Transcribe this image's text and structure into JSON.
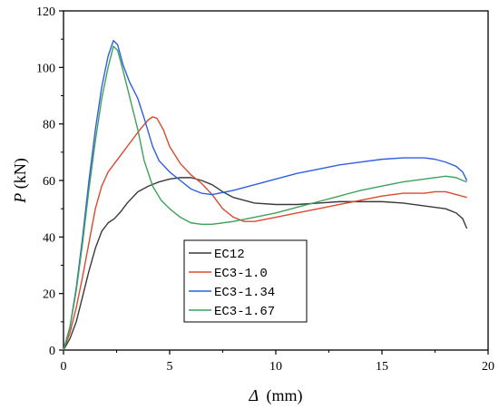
{
  "chart_data": {
    "type": "line",
    "title": "",
    "xlabel_symbol": "Δ",
    "xlabel_unit": "(mm)",
    "ylabel_symbol": "P",
    "ylabel_unit": "(kN)",
    "xlim": [
      0,
      20
    ],
    "ylim": [
      0,
      120
    ],
    "xticks": [
      0,
      5,
      10,
      15,
      20
    ],
    "yticks": [
      0,
      20,
      40,
      60,
      80,
      100,
      120
    ],
    "grid": false,
    "legend_placement": "lower-center",
    "series": [
      {
        "name": "EC12",
        "color": "#3a3a3a",
        "points": [
          [
            0,
            0
          ],
          [
            0.3,
            4
          ],
          [
            0.6,
            10
          ],
          [
            0.9,
            19
          ],
          [
            1.2,
            28
          ],
          [
            1.5,
            36
          ],
          [
            1.8,
            42
          ],
          [
            2.1,
            45
          ],
          [
            2.4,
            46.5
          ],
          [
            2.7,
            49
          ],
          [
            3.0,
            52
          ],
          [
            3.5,
            56
          ],
          [
            4.0,
            58
          ],
          [
            4.5,
            59.5
          ],
          [
            5.0,
            60.5
          ],
          [
            5.5,
            61
          ],
          [
            6.0,
            61
          ],
          [
            6.5,
            60
          ],
          [
            7.0,
            58.5
          ],
          [
            7.5,
            56
          ],
          [
            8.0,
            54
          ],
          [
            9.0,
            52
          ],
          [
            10.0,
            51.5
          ],
          [
            11.0,
            51.5
          ],
          [
            12.0,
            52
          ],
          [
            13.0,
            52.5
          ],
          [
            14.0,
            52.5
          ],
          [
            15.0,
            52.5
          ],
          [
            16.0,
            52
          ],
          [
            17.0,
            51
          ],
          [
            18.0,
            50
          ],
          [
            18.5,
            48.5
          ],
          [
            18.8,
            46.5
          ],
          [
            19.0,
            43
          ]
        ]
      },
      {
        "name": "EC3-1.0",
        "color": "#d94a2e",
        "points": [
          [
            0,
            0
          ],
          [
            0.3,
            6
          ],
          [
            0.6,
            15
          ],
          [
            0.9,
            26
          ],
          [
            1.2,
            38
          ],
          [
            1.5,
            50
          ],
          [
            1.8,
            58
          ],
          [
            2.1,
            63
          ],
          [
            2.4,
            66
          ],
          [
            2.8,
            70
          ],
          [
            3.2,
            74
          ],
          [
            3.6,
            78
          ],
          [
            4.0,
            81.5
          ],
          [
            4.2,
            82.5
          ],
          [
            4.4,
            82
          ],
          [
            4.7,
            78
          ],
          [
            5.0,
            72
          ],
          [
            5.5,
            66
          ],
          [
            6.0,
            62
          ],
          [
            6.5,
            59
          ],
          [
            7.0,
            55
          ],
          [
            7.5,
            50
          ],
          [
            8.0,
            47
          ],
          [
            8.5,
            45.5
          ],
          [
            9.0,
            45.5
          ],
          [
            10.0,
            47
          ],
          [
            11.0,
            48.5
          ],
          [
            12.0,
            50
          ],
          [
            13.0,
            51.5
          ],
          [
            14.0,
            53
          ],
          [
            15.0,
            54.5
          ],
          [
            16.0,
            55.5
          ],
          [
            17.0,
            55.5
          ],
          [
            17.5,
            56
          ],
          [
            18.0,
            56
          ],
          [
            18.5,
            55
          ],
          [
            19.0,
            54
          ]
        ]
      },
      {
        "name": "EC3-1.34",
        "color": "#2f5fe0",
        "points": [
          [
            0,
            0
          ],
          [
            0.3,
            8
          ],
          [
            0.6,
            22
          ],
          [
            0.9,
            40
          ],
          [
            1.2,
            60
          ],
          [
            1.5,
            78
          ],
          [
            1.8,
            93
          ],
          [
            2.1,
            104
          ],
          [
            2.35,
            109.5
          ],
          [
            2.55,
            108
          ],
          [
            2.8,
            101
          ],
          [
            3.1,
            95
          ],
          [
            3.5,
            89
          ],
          [
            3.8,
            82
          ],
          [
            4.2,
            72
          ],
          [
            4.5,
            67
          ],
          [
            5.0,
            63
          ],
          [
            5.5,
            60
          ],
          [
            6.0,
            57
          ],
          [
            6.5,
            55.5
          ],
          [
            7.0,
            55
          ],
          [
            8.0,
            56.5
          ],
          [
            9.0,
            58.5
          ],
          [
            10.0,
            60.5
          ],
          [
            11.0,
            62.5
          ],
          [
            12.0,
            64
          ],
          [
            13.0,
            65.5
          ],
          [
            14.0,
            66.5
          ],
          [
            15.0,
            67.5
          ],
          [
            16.0,
            68
          ],
          [
            17.0,
            68
          ],
          [
            17.5,
            67.5
          ],
          [
            18.0,
            66.5
          ],
          [
            18.5,
            65
          ],
          [
            18.8,
            63
          ],
          [
            19.0,
            60
          ]
        ]
      },
      {
        "name": "EC3-1.67",
        "color": "#3fa05c",
        "points": [
          [
            0,
            0
          ],
          [
            0.3,
            8
          ],
          [
            0.6,
            21
          ],
          [
            0.9,
            38
          ],
          [
            1.2,
            57
          ],
          [
            1.5,
            74
          ],
          [
            1.8,
            89
          ],
          [
            2.1,
            100
          ],
          [
            2.35,
            107.5
          ],
          [
            2.55,
            106
          ],
          [
            2.8,
            99
          ],
          [
            3.1,
            90
          ],
          [
            3.5,
            78
          ],
          [
            3.8,
            67
          ],
          [
            4.2,
            58
          ],
          [
            4.6,
            53
          ],
          [
            5.0,
            50
          ],
          [
            5.5,
            47
          ],
          [
            6.0,
            45
          ],
          [
            6.5,
            44.5
          ],
          [
            7.0,
            44.5
          ],
          [
            8.0,
            45.5
          ],
          [
            9.0,
            47
          ],
          [
            10.0,
            48.5
          ],
          [
            11.0,
            50.5
          ],
          [
            12.0,
            52.5
          ],
          [
            13.0,
            54.5
          ],
          [
            14.0,
            56.5
          ],
          [
            15.0,
            58
          ],
          [
            16.0,
            59.5
          ],
          [
            17.0,
            60.5
          ],
          [
            18.0,
            61.5
          ],
          [
            18.5,
            61
          ],
          [
            18.8,
            60
          ],
          [
            19.0,
            59.5
          ]
        ]
      }
    ]
  }
}
